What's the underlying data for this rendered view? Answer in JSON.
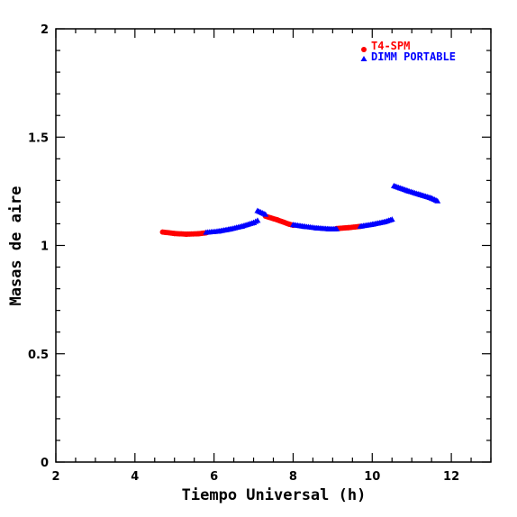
{
  "chart_data": {
    "type": "scatter",
    "xlabel": "Tiempo Universal (h)",
    "ylabel": "Masas de aire",
    "xlim": [
      2,
      13
    ],
    "ylim": [
      0,
      2
    ],
    "x_ticks": [
      "2",
      "4",
      "6",
      "8",
      "10",
      "12"
    ],
    "y_ticks": [
      "0",
      "0.5",
      "1",
      "1.5",
      "2"
    ],
    "legend_position": "top-right",
    "series": [
      {
        "name": "T4-SPM",
        "color": "#ff0000",
        "marker": "circle",
        "segments": [
          [
            [
              4.7,
              1.062
            ],
            [
              5.0,
              1.055
            ],
            [
              5.3,
              1.052
            ],
            [
              5.6,
              1.054
            ],
            [
              5.8,
              1.058
            ]
          ],
          [
            [
              7.3,
              1.135
            ],
            [
              7.6,
              1.118
            ],
            [
              7.9,
              1.098
            ],
            [
              8.0,
              1.093
            ]
          ],
          [
            [
              9.1,
              1.078
            ],
            [
              9.4,
              1.082
            ],
            [
              9.7,
              1.088
            ]
          ]
        ]
      },
      {
        "name": "DIMM PORTABLE",
        "color": "#0000ff",
        "marker": "triangle",
        "segments": [
          [
            [
              5.8,
              1.06
            ],
            [
              6.1,
              1.065
            ],
            [
              6.4,
              1.075
            ],
            [
              6.7,
              1.088
            ],
            [
              7.0,
              1.105
            ],
            [
              7.1,
              1.115
            ]
          ],
          [
            [
              7.1,
              1.16
            ],
            [
              7.3,
              1.143
            ]
          ],
          [
            [
              8.0,
              1.095
            ],
            [
              8.3,
              1.087
            ],
            [
              8.6,
              1.08
            ],
            [
              8.9,
              1.076
            ],
            [
              9.1,
              1.076
            ]
          ],
          [
            [
              9.7,
              1.088
            ],
            [
              10.0,
              1.097
            ],
            [
              10.3,
              1.108
            ],
            [
              10.5,
              1.12
            ]
          ],
          [
            [
              10.55,
              1.275
            ],
            [
              10.9,
              1.252
            ],
            [
              11.2,
              1.235
            ],
            [
              11.5,
              1.218
            ],
            [
              11.65,
              1.205
            ]
          ]
        ]
      }
    ]
  }
}
